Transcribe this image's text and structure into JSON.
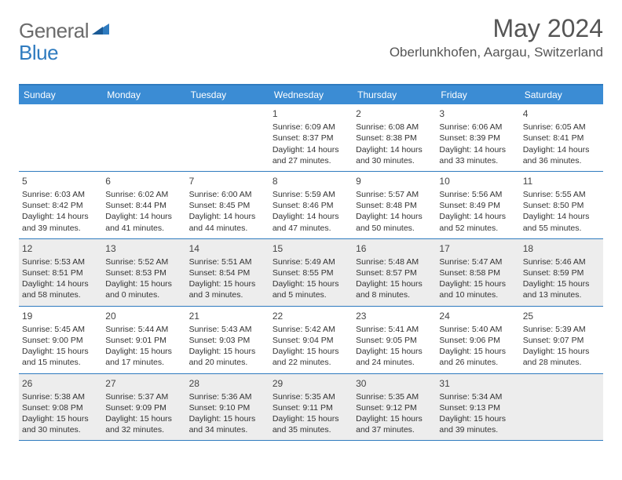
{
  "logo": {
    "general": "General",
    "blue": "Blue"
  },
  "title": "May 2024",
  "location": "Oberlunkhofen, Aargau, Switzerland",
  "colors": {
    "header_bg": "#3b8cd4",
    "header_text": "#ffffff",
    "border": "#2f7bbf",
    "shaded_bg": "#ededed",
    "logo_gray": "#6b6b6b",
    "logo_blue": "#2f7bbf",
    "text": "#333333"
  },
  "weekdays": [
    "Sunday",
    "Monday",
    "Tuesday",
    "Wednesday",
    "Thursday",
    "Friday",
    "Saturday"
  ],
  "weeks": [
    {
      "shaded": false,
      "days": [
        {
          "num": "",
          "lines": []
        },
        {
          "num": "",
          "lines": []
        },
        {
          "num": "",
          "lines": []
        },
        {
          "num": "1",
          "lines": [
            "Sunrise: 6:09 AM",
            "Sunset: 8:37 PM",
            "Daylight: 14 hours and 27 minutes."
          ]
        },
        {
          "num": "2",
          "lines": [
            "Sunrise: 6:08 AM",
            "Sunset: 8:38 PM",
            "Daylight: 14 hours and 30 minutes."
          ]
        },
        {
          "num": "3",
          "lines": [
            "Sunrise: 6:06 AM",
            "Sunset: 8:39 PM",
            "Daylight: 14 hours and 33 minutes."
          ]
        },
        {
          "num": "4",
          "lines": [
            "Sunrise: 6:05 AM",
            "Sunset: 8:41 PM",
            "Daylight: 14 hours and 36 minutes."
          ]
        }
      ]
    },
    {
      "shaded": false,
      "days": [
        {
          "num": "5",
          "lines": [
            "Sunrise: 6:03 AM",
            "Sunset: 8:42 PM",
            "Daylight: 14 hours and 39 minutes."
          ]
        },
        {
          "num": "6",
          "lines": [
            "Sunrise: 6:02 AM",
            "Sunset: 8:44 PM",
            "Daylight: 14 hours and 41 minutes."
          ]
        },
        {
          "num": "7",
          "lines": [
            "Sunrise: 6:00 AM",
            "Sunset: 8:45 PM",
            "Daylight: 14 hours and 44 minutes."
          ]
        },
        {
          "num": "8",
          "lines": [
            "Sunrise: 5:59 AM",
            "Sunset: 8:46 PM",
            "Daylight: 14 hours and 47 minutes."
          ]
        },
        {
          "num": "9",
          "lines": [
            "Sunrise: 5:57 AM",
            "Sunset: 8:48 PM",
            "Daylight: 14 hours and 50 minutes."
          ]
        },
        {
          "num": "10",
          "lines": [
            "Sunrise: 5:56 AM",
            "Sunset: 8:49 PM",
            "Daylight: 14 hours and 52 minutes."
          ]
        },
        {
          "num": "11",
          "lines": [
            "Sunrise: 5:55 AM",
            "Sunset: 8:50 PM",
            "Daylight: 14 hours and 55 minutes."
          ]
        }
      ]
    },
    {
      "shaded": true,
      "days": [
        {
          "num": "12",
          "lines": [
            "Sunrise: 5:53 AM",
            "Sunset: 8:51 PM",
            "Daylight: 14 hours and 58 minutes."
          ]
        },
        {
          "num": "13",
          "lines": [
            "Sunrise: 5:52 AM",
            "Sunset: 8:53 PM",
            "Daylight: 15 hours and 0 minutes."
          ]
        },
        {
          "num": "14",
          "lines": [
            "Sunrise: 5:51 AM",
            "Sunset: 8:54 PM",
            "Daylight: 15 hours and 3 minutes."
          ]
        },
        {
          "num": "15",
          "lines": [
            "Sunrise: 5:49 AM",
            "Sunset: 8:55 PM",
            "Daylight: 15 hours and 5 minutes."
          ]
        },
        {
          "num": "16",
          "lines": [
            "Sunrise: 5:48 AM",
            "Sunset: 8:57 PM",
            "Daylight: 15 hours and 8 minutes."
          ]
        },
        {
          "num": "17",
          "lines": [
            "Sunrise: 5:47 AM",
            "Sunset: 8:58 PM",
            "Daylight: 15 hours and 10 minutes."
          ]
        },
        {
          "num": "18",
          "lines": [
            "Sunrise: 5:46 AM",
            "Sunset: 8:59 PM",
            "Daylight: 15 hours and 13 minutes."
          ]
        }
      ]
    },
    {
      "shaded": false,
      "days": [
        {
          "num": "19",
          "lines": [
            "Sunrise: 5:45 AM",
            "Sunset: 9:00 PM",
            "Daylight: 15 hours and 15 minutes."
          ]
        },
        {
          "num": "20",
          "lines": [
            "Sunrise: 5:44 AM",
            "Sunset: 9:01 PM",
            "Daylight: 15 hours and 17 minutes."
          ]
        },
        {
          "num": "21",
          "lines": [
            "Sunrise: 5:43 AM",
            "Sunset: 9:03 PM",
            "Daylight: 15 hours and 20 minutes."
          ]
        },
        {
          "num": "22",
          "lines": [
            "Sunrise: 5:42 AM",
            "Sunset: 9:04 PM",
            "Daylight: 15 hours and 22 minutes."
          ]
        },
        {
          "num": "23",
          "lines": [
            "Sunrise: 5:41 AM",
            "Sunset: 9:05 PM",
            "Daylight: 15 hours and 24 minutes."
          ]
        },
        {
          "num": "24",
          "lines": [
            "Sunrise: 5:40 AM",
            "Sunset: 9:06 PM",
            "Daylight: 15 hours and 26 minutes."
          ]
        },
        {
          "num": "25",
          "lines": [
            "Sunrise: 5:39 AM",
            "Sunset: 9:07 PM",
            "Daylight: 15 hours and 28 minutes."
          ]
        }
      ]
    },
    {
      "shaded": true,
      "days": [
        {
          "num": "26",
          "lines": [
            "Sunrise: 5:38 AM",
            "Sunset: 9:08 PM",
            "Daylight: 15 hours and 30 minutes."
          ]
        },
        {
          "num": "27",
          "lines": [
            "Sunrise: 5:37 AM",
            "Sunset: 9:09 PM",
            "Daylight: 15 hours and 32 minutes."
          ]
        },
        {
          "num": "28",
          "lines": [
            "Sunrise: 5:36 AM",
            "Sunset: 9:10 PM",
            "Daylight: 15 hours and 34 minutes."
          ]
        },
        {
          "num": "29",
          "lines": [
            "Sunrise: 5:35 AM",
            "Sunset: 9:11 PM",
            "Daylight: 15 hours and 35 minutes."
          ]
        },
        {
          "num": "30",
          "lines": [
            "Sunrise: 5:35 AM",
            "Sunset: 9:12 PM",
            "Daylight: 15 hours and 37 minutes."
          ]
        },
        {
          "num": "31",
          "lines": [
            "Sunrise: 5:34 AM",
            "Sunset: 9:13 PM",
            "Daylight: 15 hours and 39 minutes."
          ]
        },
        {
          "num": "",
          "lines": []
        }
      ]
    }
  ]
}
